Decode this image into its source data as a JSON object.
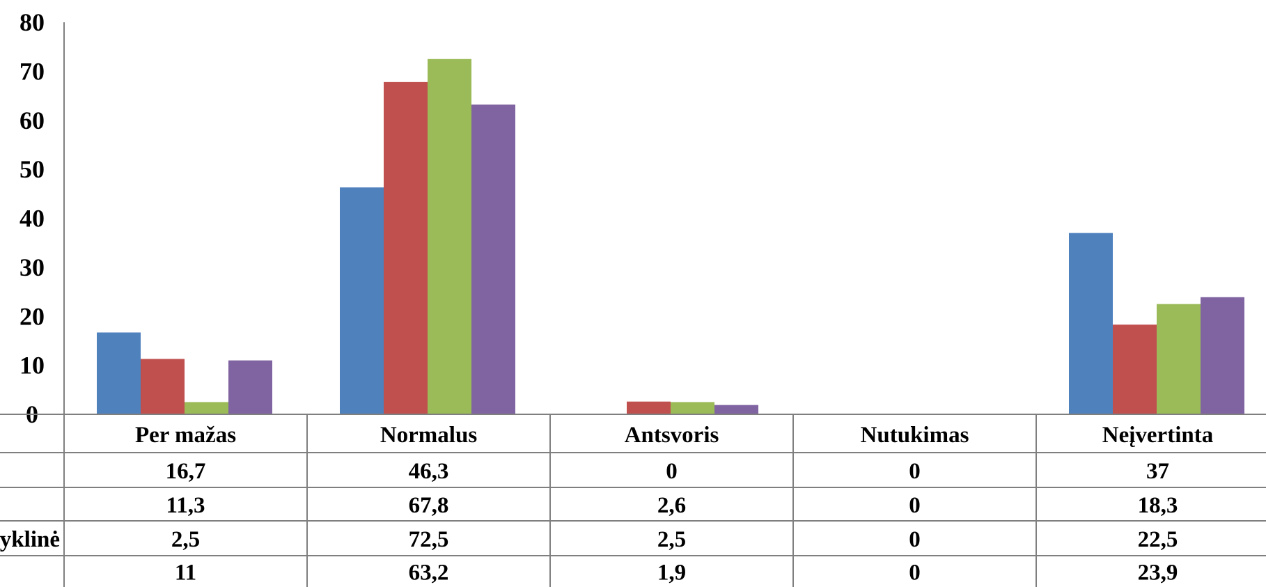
{
  "chart_data": {
    "type": "bar",
    "title": "",
    "xlabel": "",
    "ylabel": "",
    "ylim": [
      0,
      80
    ],
    "yticks": [
      "0",
      "10",
      "20",
      "30",
      "40",
      "50",
      "60",
      "70",
      "80"
    ],
    "grid": false,
    "legend": "data table below chart",
    "categories": [
      "Per mažas",
      "Normalus",
      "Antsvoris",
      "Nutukimas",
      "Neįvertinta"
    ],
    "series": [
      {
        "values": [
          16.7,
          46.3,
          0,
          0,
          37
        ],
        "labels": [
          "16,7",
          "46,3",
          "0",
          "0",
          "37"
        ],
        "color": "#4F81BD"
      },
      {
        "values": [
          11.3,
          67.8,
          2.6,
          0,
          18.3
        ],
        "labels": [
          "11,3",
          "67,8",
          "2,6",
          "0",
          "18,3"
        ],
        "color": "#C0504D"
      },
      {
        "name_fragment": "yklinė",
        "values": [
          2.5,
          72.5,
          2.5,
          0,
          22.5
        ],
        "labels": [
          "2,5",
          "72,5",
          "2,5",
          "0",
          "22,5"
        ],
        "color": "#9BBB59"
      },
      {
        "values": [
          11,
          63.2,
          1.9,
          0,
          23.9
        ],
        "labels": [
          "11",
          "63,2",
          "1,9",
          "0",
          "23,9"
        ],
        "color": "#8064A2"
      }
    ]
  }
}
